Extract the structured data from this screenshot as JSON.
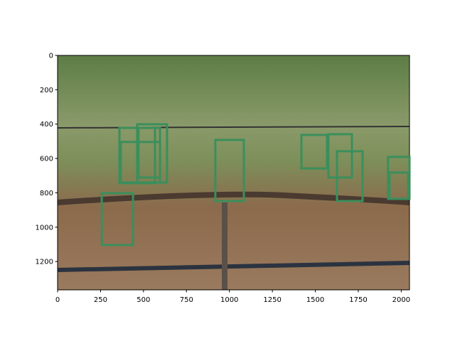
{
  "chart_data": {
    "type": "image-boxes",
    "xlim": [
      0,
      2048
    ],
    "ylim": [
      1365,
      0
    ],
    "xticks": [
      0,
      250,
      500,
      750,
      1000,
      1250,
      1500,
      1750,
      2000
    ],
    "yticks": [
      0,
      200,
      400,
      600,
      800,
      1000,
      1200
    ],
    "color": "#3b8f5c",
    "boxes": [
      [
        360,
        422,
        567,
        744
      ],
      [
        368,
        504,
        596,
        740
      ],
      [
        463,
        401,
        637,
        740
      ],
      [
        471,
        422,
        596,
        711
      ],
      [
        257,
        802,
        439,
        1104
      ],
      [
        918,
        492,
        1084,
        848
      ],
      [
        1419,
        463,
        1568,
        658
      ],
      [
        1576,
        459,
        1713,
        711
      ],
      [
        1626,
        558,
        1775,
        848
      ],
      [
        1923,
        591,
        2048,
        835
      ],
      [
        1932,
        682,
        2040,
        835
      ]
    ]
  }
}
